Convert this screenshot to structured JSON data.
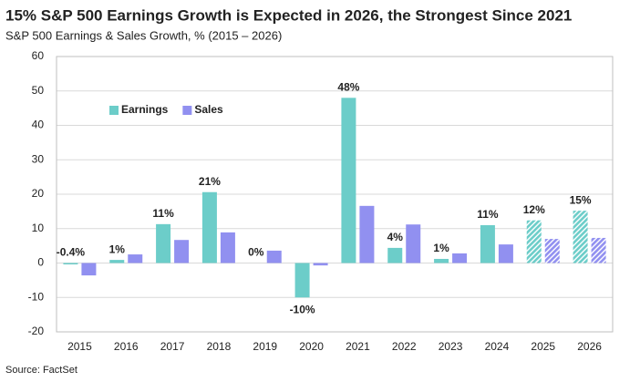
{
  "chart_data": {
    "type": "bar",
    "title": "15% S&P 500 Earnings Growth is Expected in 2026, the Strongest Since 2021",
    "subtitle": "S&P 500 Earnings & Sales Growth, % (2015 – 2026)",
    "source": "Source: FactSet",
    "categories": [
      "2015",
      "2016",
      "2017",
      "2018",
      "2019",
      "2020",
      "2021",
      "2022",
      "2023",
      "2024",
      "2025",
      "2026"
    ],
    "series": [
      {
        "name": "Earnings",
        "color": "#6ccdc9",
        "values": [
          -0.4,
          0.9,
          11.3,
          20.6,
          0,
          -10,
          48,
          4.4,
          1.2,
          11,
          12.4,
          15.2
        ],
        "value_labels": [
          "-0.4%",
          "1%",
          "11%",
          "21%",
          "0%",
          "-10%",
          "48%",
          "4%",
          "1%",
          "11%",
          "12%",
          "15%"
        ]
      },
      {
        "name": "Sales",
        "color": "#9190f0",
        "values": [
          -3.6,
          2.5,
          6.7,
          8.9,
          3.6,
          -0.7,
          16.6,
          11.2,
          2.8,
          5.4,
          7.0,
          7.3
        ]
      }
    ],
    "hatched_categories": [
      "2025",
      "2026"
    ],
    "ylim": [
      -20,
      60
    ],
    "yticks": [
      -20,
      -10,
      0,
      10,
      20,
      30,
      40,
      50,
      60
    ],
    "grid": true,
    "legend": "upper left"
  }
}
